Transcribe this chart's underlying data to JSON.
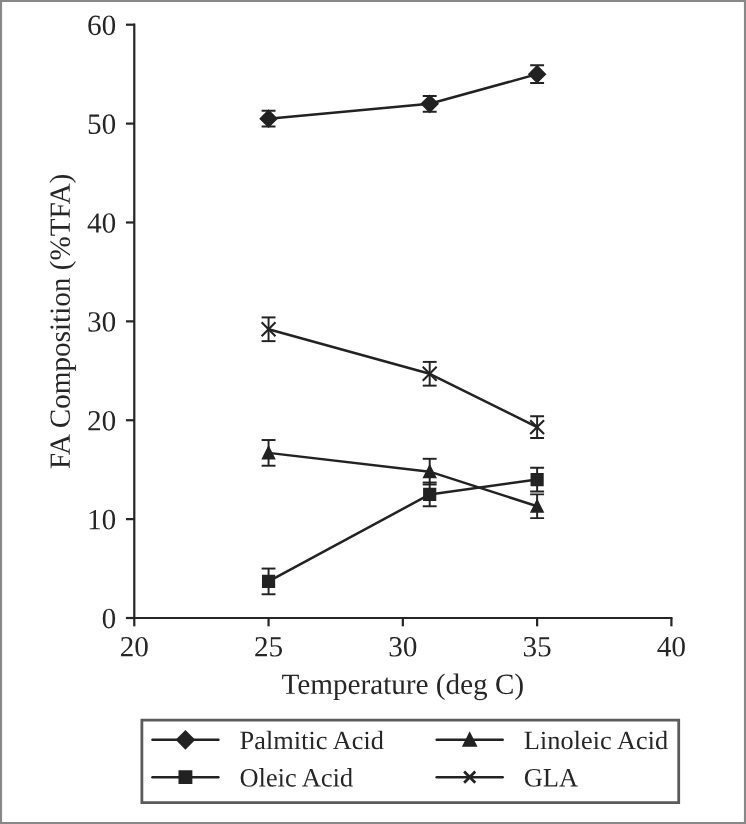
{
  "chart_data": {
    "type": "line",
    "xlabel": "Temperature (deg C)",
    "ylabel": "FA Composition (%TFA)",
    "x": [
      25,
      31,
      35
    ],
    "series": [
      {
        "name": "Palmitic Acid",
        "color": "#222222",
        "marker": "diamond",
        "values": [
          50.5,
          52,
          55
        ],
        "errors": [
          0.8,
          0.8,
          0.9
        ]
      },
      {
        "name": "Oleic Acid",
        "color": "#222222",
        "marker": "square",
        "values": [
          3.7,
          12.5,
          14
        ],
        "errors": [
          1.3,
          1.2,
          1.2
        ]
      },
      {
        "name": "Linoleic Acid",
        "color": "#222222",
        "marker": "triangle",
        "values": [
          16.7,
          14.8,
          11.3
        ],
        "errors": [
          1.3,
          1.3,
          1.2
        ]
      },
      {
        "name": "GLA",
        "color": "#222222",
        "marker": "cross",
        "values": [
          29.2,
          24.7,
          19.3
        ],
        "errors": [
          1.2,
          1.2,
          1.1
        ]
      }
    ],
    "xlim": [
      20,
      40
    ],
    "xticks": [
      20,
      25,
      30,
      35,
      40
    ],
    "ylim": [
      0,
      60
    ],
    "yticks": [
      0,
      10,
      20,
      30,
      40,
      50,
      60
    ],
    "grid": false,
    "legend": "bottom",
    "line_style": "solid"
  }
}
